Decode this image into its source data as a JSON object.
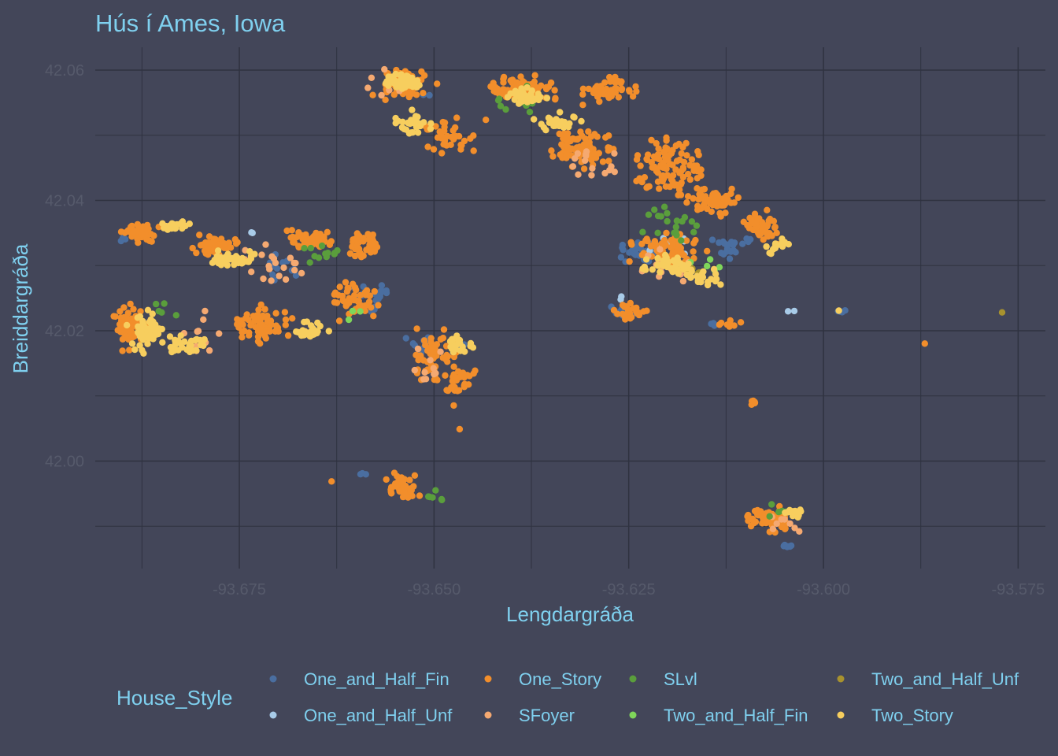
{
  "chart_data": {
    "type": "scatter",
    "title": "Hús í Ames, Iowa",
    "xlabel": "Lengdargráða",
    "ylabel": "Breiddargráða",
    "xlim": [
      -93.6935,
      -93.5715
    ],
    "ylim": [
      41.9835,
      42.0635
    ],
    "x_ticks": [
      -93.675,
      -93.65,
      -93.625,
      -93.6,
      -93.575
    ],
    "x_tick_labels": [
      "-93.675",
      "-93.650",
      "-93.625",
      "-93.600",
      "-93.575"
    ],
    "y_ticks": [
      42.0,
      42.02,
      42.04,
      42.06
    ],
    "y_tick_labels": [
      "42.00",
      "42.02",
      "42.04",
      "42.06"
    ],
    "grid": true,
    "legend_title": "House_Style",
    "legend_position": "bottom",
    "series": [
      {
        "name": "One_and_Half_Fin",
        "color": "#4a6ea0",
        "clusters": [
          [
            -93.69,
            42.034,
            0.001,
            0.0005,
            3
          ],
          [
            -93.67,
            42.03,
            0.003,
            0.003,
            12
          ],
          [
            -93.658,
            42.025,
            0.004,
            0.003,
            22
          ],
          [
            -93.651,
            42.018,
            0.003,
            0.002,
            22
          ],
          [
            -93.623,
            42.032,
            0.005,
            0.003,
            40
          ],
          [
            -93.612,
            42.033,
            0.004,
            0.003,
            22
          ],
          [
            -93.626,
            42.023,
            0.003,
            0.001,
            12
          ],
          [
            -93.605,
            41.987,
            0.002,
            0.0005,
            6
          ],
          [
            -93.659,
            41.998,
            0.0007,
            0.0004,
            3
          ],
          [
            -93.647,
            42.018,
            0.002,
            0.002,
            8
          ],
          [
            -93.614,
            42.021,
            0.001,
            0.0005,
            4
          ],
          [
            -93.598,
            42.023,
            0.0015,
            0.0002,
            4
          ],
          [
            -93.651,
            42.056,
            0.001,
            0.0005,
            2
          ]
        ]
      },
      {
        "name": "One_and_Half_Unf",
        "color": "#a8cbe8",
        "clusters": [
          [
            -93.62,
            42.033,
            0.005,
            0.003,
            10
          ],
          [
            -93.673,
            42.035,
            0.001,
            0.0005,
            2
          ],
          [
            -93.604,
            42.023,
            0.001,
            0.0002,
            2
          ],
          [
            -93.626,
            42.025,
            0.001,
            0.001,
            2
          ]
        ]
      },
      {
        "name": "One_Story",
        "color": "#f28e2b",
        "clusters": [
          [
            -93.688,
            42.035,
            0.003,
            0.002,
            50
          ],
          [
            -93.678,
            42.033,
            0.004,
            0.002,
            50
          ],
          [
            -93.666,
            42.034,
            0.004,
            0.002,
            60
          ],
          [
            -93.659,
            42.033,
            0.003,
            0.003,
            40
          ],
          [
            -93.689,
            42.021,
            0.003,
            0.005,
            60
          ],
          [
            -93.672,
            42.021,
            0.005,
            0.004,
            60
          ],
          [
            -93.66,
            42.025,
            0.004,
            0.004,
            50
          ],
          [
            -93.65,
            42.016,
            0.004,
            0.005,
            60
          ],
          [
            -93.647,
            42.012,
            0.003,
            0.004,
            30
          ],
          [
            -93.654,
            42.058,
            0.005,
            0.003,
            70
          ],
          [
            -93.648,
            42.05,
            0.005,
            0.004,
            40
          ],
          [
            -93.639,
            42.057,
            0.006,
            0.003,
            80
          ],
          [
            -93.628,
            42.057,
            0.005,
            0.003,
            50
          ],
          [
            -93.631,
            42.048,
            0.005,
            0.004,
            80
          ],
          [
            -93.62,
            42.045,
            0.006,
            0.006,
            100
          ],
          [
            -93.614,
            42.04,
            0.004,
            0.003,
            60
          ],
          [
            -93.608,
            42.036,
            0.003,
            0.003,
            50
          ],
          [
            -93.62,
            42.032,
            0.006,
            0.004,
            80
          ],
          [
            -93.625,
            42.023,
            0.003,
            0.002,
            25
          ],
          [
            -93.612,
            42.021,
            0.002,
            0.001,
            8
          ],
          [
            -93.609,
            42.009,
            0.0007,
            0.0005,
            8
          ],
          [
            -93.654,
            41.996,
            0.003,
            0.003,
            40
          ],
          [
            -93.607,
            41.991,
            0.004,
            0.003,
            60
          ],
          [
            -93.587,
            42.018,
            0.0005,
            0.0003,
            1
          ],
          [
            -93.663,
            41.997,
            0.0005,
            0.0003,
            1
          ],
          [
            -93.647,
            42.005,
            0.0005,
            0.0003,
            1
          ]
        ]
      },
      {
        "name": "SFoyer",
        "color": "#f5a971",
        "clusters": [
          [
            -93.67,
            42.03,
            0.006,
            0.004,
            20
          ],
          [
            -93.63,
            42.045,
            0.006,
            0.004,
            15
          ],
          [
            -93.62,
            42.03,
            0.006,
            0.004,
            15
          ],
          [
            -93.65,
            42.015,
            0.004,
            0.004,
            10
          ],
          [
            -93.605,
            41.99,
            0.003,
            0.002,
            8
          ],
          [
            -93.68,
            42.02,
            0.004,
            0.004,
            10
          ],
          [
            -93.655,
            42.058,
            0.004,
            0.003,
            8
          ]
        ]
      },
      {
        "name": "SLvl",
        "color": "#5a9e3c",
        "clusters": [
          [
            -93.62,
            42.036,
            0.007,
            0.005,
            20
          ],
          [
            -93.64,
            42.055,
            0.005,
            0.004,
            12
          ],
          [
            -93.665,
            42.032,
            0.005,
            0.003,
            12
          ],
          [
            -93.65,
            41.995,
            0.004,
            0.002,
            6
          ],
          [
            -93.606,
            41.992,
            0.003,
            0.002,
            5
          ],
          [
            -93.685,
            42.023,
            0.003,
            0.003,
            5
          ]
        ]
      },
      {
        "name": "Two_and_Half_Fin",
        "color": "#7fd65a",
        "clusters": [
          [
            -93.615,
            42.03,
            0.004,
            0.002,
            5
          ],
          [
            -93.66,
            42.022,
            0.003,
            0.002,
            3
          ]
        ]
      },
      {
        "name": "Two_and_Half_Unf",
        "color": "#a8922e",
        "clusters": [
          [
            -93.616,
            42.029,
            0.003,
            0.001,
            5
          ],
          [
            -93.577,
            42.0228,
            0.0001,
            0.0001,
            1
          ]
        ]
      },
      {
        "name": "Two_Story",
        "color": "#f7ce5e",
        "clusters": [
          [
            -93.687,
            42.02,
            0.003,
            0.004,
            60
          ],
          [
            -93.682,
            42.018,
            0.003,
            0.002,
            30
          ],
          [
            -93.676,
            42.031,
            0.004,
            0.002,
            40
          ],
          [
            -93.683,
            42.036,
            0.003,
            0.001,
            25
          ],
          [
            -93.666,
            42.02,
            0.003,
            0.002,
            25
          ],
          [
            -93.654,
            42.058,
            0.003,
            0.002,
            50
          ],
          [
            -93.653,
            42.052,
            0.003,
            0.003,
            30
          ],
          [
            -93.638,
            42.056,
            0.004,
            0.002,
            40
          ],
          [
            -93.634,
            42.052,
            0.004,
            0.002,
            30
          ],
          [
            -93.62,
            42.03,
            0.005,
            0.002,
            40
          ],
          [
            -93.615,
            42.028,
            0.004,
            0.002,
            20
          ],
          [
            -93.606,
            42.033,
            0.002,
            0.002,
            15
          ],
          [
            -93.604,
            41.992,
            0.002,
            0.001,
            15
          ],
          [
            -93.647,
            42.018,
            0.003,
            0.002,
            20
          ],
          [
            -93.598,
            42.023,
            0.0002,
            0.0002,
            1
          ]
        ]
      }
    ]
  }
}
